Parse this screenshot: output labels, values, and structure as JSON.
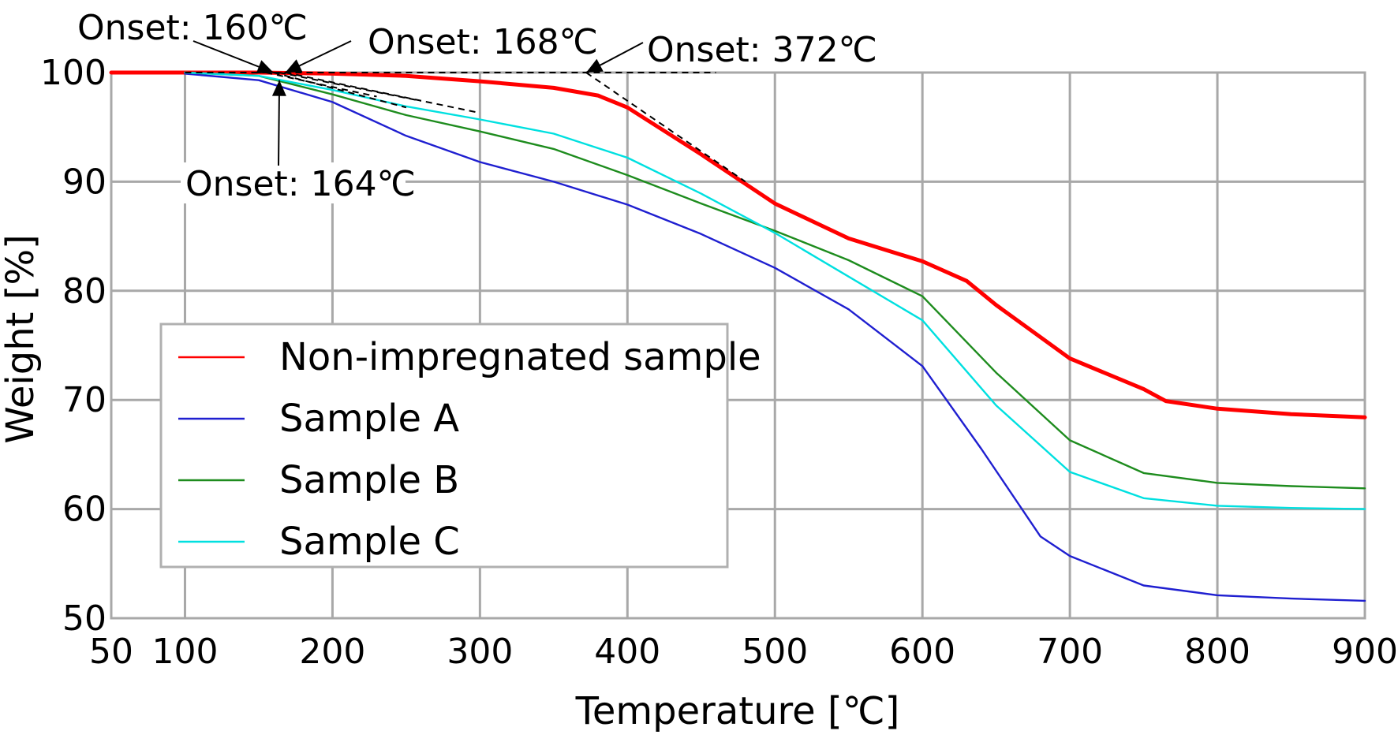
{
  "chart_data": {
    "type": "line",
    "title": "",
    "xlabel": "Temperature [℃]",
    "ylabel": "Weight [%]",
    "xlim": [
      50,
      900
    ],
    "ylim": [
      50,
      100
    ],
    "x_ticks": [
      "50",
      "100",
      "200",
      "300",
      "400",
      "500",
      "600",
      "700",
      "800",
      "900"
    ],
    "y_ticks": [
      "50",
      "60",
      "70",
      "80",
      "90",
      "100"
    ],
    "grid": true,
    "legend_position": "lower-left",
    "series": [
      {
        "name": "Non-impregnated sample",
        "color": "#ff0000",
        "x": [
          50,
          100,
          150,
          200,
          250,
          300,
          350,
          380,
          400,
          450,
          500,
          550,
          600,
          630,
          650,
          700,
          750,
          765,
          800,
          850,
          900
        ],
        "y": [
          100,
          100,
          100,
          99.9,
          99.7,
          99.2,
          98.6,
          97.9,
          96.8,
          92.5,
          88,
          84.8,
          82.7,
          80.9,
          78.7,
          73.8,
          71,
          69.9,
          69.2,
          68.7,
          68.4
        ]
      },
      {
        "name": "Sample A",
        "color": "#1f1fd0",
        "x": [
          100,
          150,
          200,
          250,
          300,
          350,
          400,
          450,
          500,
          550,
          600,
          640,
          680,
          700,
          750,
          800,
          850,
          900
        ],
        "y": [
          99.9,
          99.3,
          97.3,
          94.2,
          91.8,
          90,
          87.9,
          85.2,
          82.1,
          78.3,
          73.1,
          65.5,
          57.5,
          55.7,
          53,
          52.1,
          51.8,
          51.6
        ]
      },
      {
        "name": "Sample B",
        "color": "#1e8c1e",
        "x": [
          100,
          150,
          200,
          250,
          300,
          350,
          400,
          450,
          500,
          550,
          600,
          650,
          700,
          750,
          800,
          850,
          900
        ],
        "y": [
          100,
          99.7,
          98,
          96.1,
          94.6,
          93,
          90.6,
          88,
          85.5,
          82.8,
          79.5,
          72.5,
          66.3,
          63.3,
          62.4,
          62.1,
          61.9
        ]
      },
      {
        "name": "Sample C",
        "color": "#00e0e0",
        "x": [
          100,
          150,
          200,
          250,
          300,
          350,
          400,
          450,
          500,
          550,
          600,
          650,
          700,
          750,
          800,
          850,
          900
        ],
        "y": [
          100,
          99.7,
          98.4,
          96.9,
          95.7,
          94.4,
          92.2,
          88.9,
          85.3,
          81.3,
          77.3,
          69.5,
          63.4,
          61,
          60.3,
          60.1,
          60
        ]
      }
    ],
    "annotations": [
      {
        "text": "Onset: 160℃",
        "x": 160,
        "y": 100
      },
      {
        "text": "Onset: 168℃",
        "x": 168,
        "y": 100
      },
      {
        "text": "Onset: 372℃",
        "x": 372,
        "y": 100
      },
      {
        "text": "Onset: 164℃",
        "x": 164,
        "y": 99.3
      }
    ]
  }
}
